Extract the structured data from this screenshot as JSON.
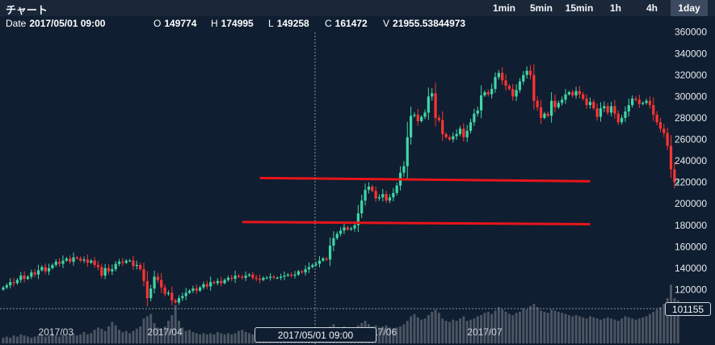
{
  "header": {
    "title": "チャート",
    "timeframes": [
      {
        "label": "1min",
        "active": false
      },
      {
        "label": "5min",
        "active": false
      },
      {
        "label": "15min",
        "active": false
      },
      {
        "label": "1h",
        "active": false
      },
      {
        "label": "4h",
        "active": false
      },
      {
        "label": "1day",
        "active": true
      }
    ]
  },
  "ohlc": {
    "date_label": "Date",
    "date": "2017/05/01 09:00",
    "open_label": "O",
    "open": "149774",
    "high_label": "H",
    "high": "174995",
    "low_label": "L",
    "low": "149258",
    "close_label": "C",
    "close": "161472",
    "volume_label": "V",
    "volume": "21955.53844973"
  },
  "crosshair": {
    "date": "2017/05/01 09:00",
    "price": "101155"
  },
  "colors": {
    "up": "#3fd6a7",
    "down": "#ff3434",
    "trendline": "#e8141a",
    "volume": "#4b5563",
    "background": "#0f1e30"
  },
  "chart_data": {
    "type": "candlestick",
    "title": "",
    "xlabel": "",
    "ylabel": "",
    "x_ticks": [
      "2017/03",
      "2017/04",
      "2017/06",
      "2017/07"
    ],
    "y_ticks": [
      120000,
      140000,
      160000,
      180000,
      200000,
      220000,
      240000,
      260000,
      280000,
      300000,
      320000,
      340000,
      360000
    ],
    "ylim": [
      98000,
      368000
    ],
    "grid": false,
    "trendlines": [
      {
        "from": [
          "2017/04/28",
          224000
        ],
        "to": [
          "2017/07/31",
          221000
        ]
      },
      {
        "from": [
          "2017/04/23",
          183000
        ],
        "to": [
          "2017/07/31",
          181000
        ]
      }
    ],
    "closes": [
      122000,
      124000,
      127000,
      126000,
      129000,
      133000,
      130000,
      132000,
      136000,
      134000,
      138000,
      141000,
      137000,
      140000,
      143000,
      146000,
      144000,
      147000,
      149000,
      146000,
      150000,
      149000,
      147000,
      148000,
      145000,
      147000,
      143000,
      141000,
      133000,
      140000,
      137000,
      139000,
      144000,
      146000,
      145000,
      147000,
      147000,
      142000,
      143000,
      139000,
      128000,
      112000,
      121000,
      132000,
      129000,
      122000,
      116000,
      117000,
      110000,
      108000,
      112000,
      114000,
      117000,
      119000,
      121000,
      119000,
      122000,
      125000,
      123000,
      127000,
      126000,
      128000,
      126000,
      129000,
      131000,
      130000,
      133000,
      132000,
      131000,
      133000,
      134000,
      131000,
      130000,
      129000,
      131000,
      131000,
      132000,
      131000,
      131000,
      132000,
      133000,
      134000,
      133000,
      134000,
      137000,
      136000,
      139000,
      141000,
      143000,
      144000,
      147000,
      149000,
      148000,
      161000,
      168000,
      172000,
      175000,
      178000,
      176000,
      177000,
      180000,
      191000,
      203000,
      213000,
      216000,
      212000,
      205000,
      206000,
      209000,
      203000,
      206000,
      210000,
      217000,
      229000,
      235000,
      262000,
      282000,
      283000,
      277000,
      281000,
      285000,
      300000,
      303000,
      280000,
      278000,
      265000,
      262000,
      260000,
      263000,
      265000,
      270000,
      262000,
      268000,
      276000,
      284000,
      287000,
      301000,
      304000,
      302000,
      307000,
      318000,
      322000,
      315000,
      310000,
      307000,
      300000,
      306000,
      314000,
      320000,
      324000,
      320000,
      296000,
      290000,
      280000,
      284000,
      282000,
      296000,
      290000,
      294000,
      297000,
      302000,
      304000,
      301000,
      305000,
      302000,
      298000,
      292000,
      295000,
      289000,
      281000,
      289000,
      291000,
      285000,
      291000,
      284000,
      276000,
      280000,
      286000,
      292000,
      298000,
      297000,
      293000,
      294000,
      296000,
      292000,
      283000,
      276000,
      270000,
      266000,
      254000,
      232000,
      220000,
      220000
    ],
    "volumes": [
      5,
      6,
      5,
      7,
      6,
      8,
      7,
      6,
      5,
      6,
      7,
      8,
      6,
      7,
      9,
      7,
      6,
      8,
      7,
      8,
      9,
      7,
      8,
      10,
      8,
      9,
      12,
      14,
      13,
      11,
      15,
      19,
      16,
      12,
      10,
      11,
      9,
      11,
      13,
      15,
      22,
      24,
      26,
      18,
      14,
      13,
      15,
      20,
      25,
      34,
      20,
      14,
      11,
      12,
      10,
      9,
      8,
      9,
      8,
      9,
      8,
      10,
      9,
      8,
      9,
      8,
      9,
      11,
      12,
      10,
      9,
      8,
      7,
      8,
      9,
      8,
      9,
      8,
      7,
      9,
      8,
      9,
      10,
      9,
      9,
      10,
      9,
      10,
      11,
      9,
      10,
      12,
      10,
      15,
      17,
      14,
      13,
      15,
      14,
      12,
      13,
      16,
      18,
      20,
      17,
      15,
      16,
      14,
      15,
      16,
      14,
      13,
      14,
      15,
      17,
      20,
      24,
      26,
      23,
      21,
      22,
      25,
      28,
      30,
      27,
      22,
      20,
      19,
      21,
      20,
      22,
      24,
      20,
      21,
      22,
      24,
      25,
      27,
      28,
      26,
      29,
      32,
      30,
      28,
      26,
      25,
      27,
      28,
      31,
      30,
      33,
      35,
      32,
      29,
      28,
      27,
      30,
      29,
      28,
      27,
      26,
      25,
      24,
      25,
      24,
      23,
      22,
      24,
      23,
      22,
      21,
      22,
      23,
      22,
      21,
      20,
      22,
      24,
      23,
      22,
      21,
      22,
      23,
      24,
      26,
      28,
      30,
      32,
      35,
      40,
      52,
      40,
      38
    ]
  }
}
